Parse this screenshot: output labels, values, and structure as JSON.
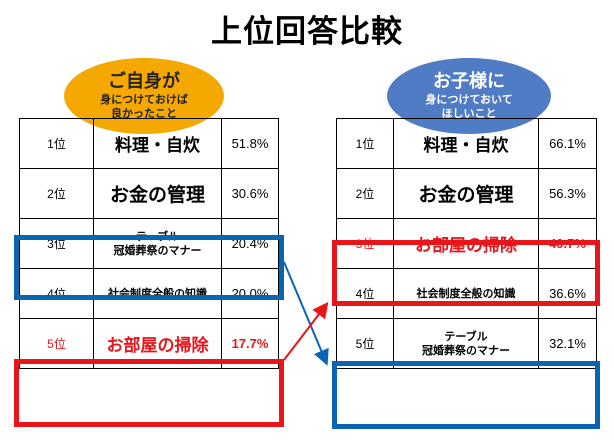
{
  "title": "上位回答比較",
  "left": {
    "bubble_title": "ご自身が",
    "bubble_sub_1": "身につけておけば",
    "bubble_sub_2": "良かったこと",
    "rows": [
      {
        "rank": "1位",
        "item": "料理・自炊",
        "pct": "51.8%"
      },
      {
        "rank": "2位",
        "item": "お金の管理",
        "pct": "30.6%"
      },
      {
        "rank": "3位",
        "item_1": "テーブル",
        "item_2": "冠婚葬祭のマナー",
        "pct": "20.4%"
      },
      {
        "rank": "4位",
        "item": "社会制度全般の知識",
        "pct": "20.0%"
      },
      {
        "rank": "5位",
        "item": "お部屋の掃除",
        "pct": "17.7%"
      }
    ]
  },
  "right": {
    "bubble_title": "お子様に",
    "bubble_sub_1": "身につけておいて",
    "bubble_sub_2": "ほしいこと",
    "rows": [
      {
        "rank": "1位",
        "item": "料理・自炊",
        "pct": "66.1%"
      },
      {
        "rank": "2位",
        "item": "お金の管理",
        "pct": "56.3%"
      },
      {
        "rank": "3位",
        "item": "お部屋の掃除",
        "pct": "40.7%"
      },
      {
        "rank": "4位",
        "item": "社会制度全般の知識",
        "pct": "36.6%"
      },
      {
        "rank": "5位",
        "item_1": "テーブル",
        "item_2": "冠婚葬祭のマナー",
        "pct": "32.1%"
      }
    ]
  },
  "colors": {
    "highlight_blue": "#0a64b4",
    "highlight_red": "#e8151a",
    "bubble_orange": "#f5a800",
    "bubble_blue": "#4f7cc4"
  }
}
